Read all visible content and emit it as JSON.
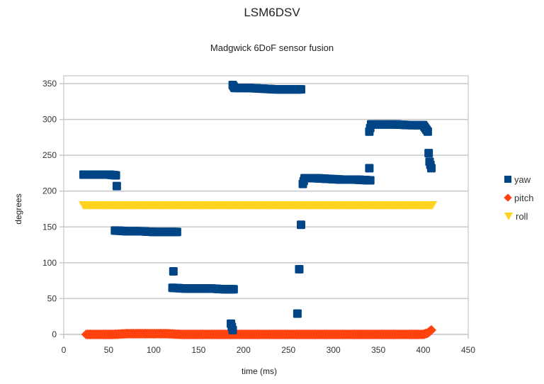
{
  "chart_data": {
    "type": "scatter",
    "title": "LSM6DSV",
    "subtitle": "Madgwick 6DoF sensor fusion",
    "xlabel": "time (ms)",
    "ylabel": "degrees",
    "xlim": [
      0,
      450
    ],
    "ylim": [
      0,
      360
    ],
    "xticks": [
      0,
      50,
      100,
      150,
      200,
      250,
      300,
      350,
      400,
      450
    ],
    "yticks": [
      0,
      50,
      100,
      150,
      200,
      250,
      300,
      350
    ],
    "grid": "horizontal",
    "legend_position": "right",
    "series": [
      {
        "name": "yaw",
        "marker": "square",
        "color": "#004586",
        "points": [
          [
            22,
            223
          ],
          [
            30,
            223
          ],
          [
            40,
            223
          ],
          [
            50,
            223
          ],
          [
            58,
            222
          ],
          [
            59,
            207
          ],
          [
            57,
            145
          ],
          [
            70,
            144
          ],
          [
            85,
            144
          ],
          [
            100,
            143
          ],
          [
            115,
            143
          ],
          [
            126,
            143
          ],
          [
            122,
            88
          ],
          [
            121,
            65
          ],
          [
            135,
            64
          ],
          [
            150,
            64
          ],
          [
            165,
            64
          ],
          [
            178,
            63
          ],
          [
            189,
            63
          ],
          [
            186,
            15
          ],
          [
            188,
            6
          ],
          [
            188,
            348
          ],
          [
            190,
            344
          ],
          [
            205,
            344
          ],
          [
            220,
            343
          ],
          [
            235,
            342
          ],
          [
            250,
            342
          ],
          [
            264,
            342
          ],
          [
            264,
            153
          ],
          [
            262,
            91
          ],
          [
            260,
            29
          ],
          [
            266,
            210
          ],
          [
            268,
            218
          ],
          [
            280,
            218
          ],
          [
            295,
            217
          ],
          [
            310,
            216
          ],
          [
            325,
            216
          ],
          [
            341,
            215
          ],
          [
            340,
            232
          ],
          [
            340,
            283
          ],
          [
            342,
            293
          ],
          [
            355,
            293
          ],
          [
            370,
            293
          ],
          [
            385,
            292
          ],
          [
            400,
            292
          ],
          [
            405,
            283
          ],
          [
            406,
            253
          ],
          [
            407,
            241
          ],
          [
            409,
            232
          ]
        ]
      },
      {
        "name": "pitch",
        "marker": "diamond",
        "color": "#ff420e",
        "points": [
          [
            25,
            0
          ],
          [
            40,
            0
          ],
          [
            55,
            0
          ],
          [
            70,
            1
          ],
          [
            85,
            1
          ],
          [
            100,
            1
          ],
          [
            115,
            1
          ],
          [
            130,
            0
          ],
          [
            145,
            0
          ],
          [
            160,
            0
          ],
          [
            175,
            0
          ],
          [
            190,
            0
          ],
          [
            205,
            0
          ],
          [
            220,
            0
          ],
          [
            235,
            0
          ],
          [
            250,
            0
          ],
          [
            265,
            0
          ],
          [
            280,
            0
          ],
          [
            295,
            0
          ],
          [
            310,
            0
          ],
          [
            325,
            0
          ],
          [
            340,
            0
          ],
          [
            355,
            0
          ],
          [
            370,
            0
          ],
          [
            385,
            0
          ],
          [
            400,
            0
          ],
          [
            405,
            2
          ],
          [
            409,
            6
          ]
        ]
      },
      {
        "name": "roll",
        "marker": "triangle-down",
        "color": "#ffd320",
        "points": [
          [
            22,
            180
          ],
          [
            40,
            180
          ],
          [
            60,
            180
          ],
          [
            80,
            180
          ],
          [
            100,
            180
          ],
          [
            120,
            180
          ],
          [
            140,
            180
          ],
          [
            160,
            180
          ],
          [
            180,
            180
          ],
          [
            200,
            180
          ],
          [
            220,
            180
          ],
          [
            240,
            180
          ],
          [
            260,
            180
          ],
          [
            280,
            180
          ],
          [
            300,
            180
          ],
          [
            320,
            180
          ],
          [
            340,
            180
          ],
          [
            360,
            180
          ],
          [
            380,
            180
          ],
          [
            400,
            180
          ],
          [
            410,
            180
          ]
        ]
      }
    ]
  },
  "legend": {
    "items": [
      {
        "label": "yaw",
        "color": "#004586",
        "icon": "square-marker-icon"
      },
      {
        "label": "pitch",
        "color": "#ff420e",
        "icon": "diamond-marker-icon"
      },
      {
        "label": "roll",
        "color": "#ffd320",
        "icon": "triangle-down-marker-icon"
      }
    ]
  }
}
